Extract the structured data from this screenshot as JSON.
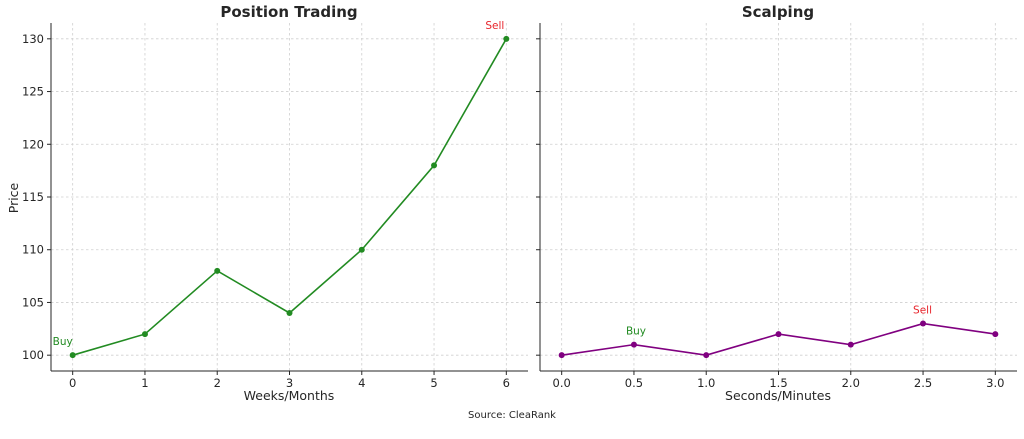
{
  "source_note": "Source: CleaRank",
  "chart_data": [
    {
      "type": "line",
      "title": "Position Trading",
      "xlabel": "Weeks/Months",
      "ylabel": "Price",
      "x": [
        0,
        1,
        2,
        3,
        4,
        5,
        6
      ],
      "series": [
        {
          "values": [
            100,
            102,
            108,
            104,
            110,
            118,
            130
          ],
          "color": "#228b22"
        }
      ],
      "xlim": [
        -0.3,
        6.3
      ],
      "ylim": [
        98.5,
        131.5
      ],
      "xticks": [
        0,
        1,
        2,
        3,
        4,
        5,
        6
      ],
      "xtick_labels": [
        "0",
        "1",
        "2",
        "3",
        "4",
        "5",
        "6"
      ],
      "yticks": [
        100,
        105,
        110,
        115,
        120,
        125,
        130
      ],
      "ytick_labels": [
        "100",
        "105",
        "110",
        "115",
        "120",
        "125",
        "130"
      ],
      "grid": true,
      "annotations": [
        {
          "text": "Buy",
          "x": 0,
          "y": 100,
          "color": "#228b22"
        },
        {
          "text": "Sell",
          "x": 6,
          "y": 130,
          "color": "#e8232a"
        }
      ]
    },
    {
      "type": "line",
      "title": "Scalping",
      "xlabel": "Seconds/Minutes",
      "ylabel": "",
      "x": [
        0.0,
        0.5,
        1.0,
        1.5,
        2.0,
        2.5,
        3.0
      ],
      "series": [
        {
          "values": [
            100,
            101,
            100,
            102,
            101,
            103,
            102
          ],
          "color": "#800080"
        }
      ],
      "xlim": [
        -0.15,
        3.15
      ],
      "ylim": [
        98.5,
        131.5
      ],
      "xticks": [
        0.0,
        0.5,
        1.0,
        1.5,
        2.0,
        2.5,
        3.0
      ],
      "xtick_labels": [
        "0.0",
        "0.5",
        "1.0",
        "1.5",
        "2.0",
        "2.5",
        "3.0"
      ],
      "yticks": [
        100,
        105,
        110,
        115,
        120,
        125,
        130
      ],
      "ytick_labels": [],
      "grid": true,
      "annotations": [
        {
          "text": "Buy",
          "x": 0.5,
          "y": 101,
          "color": "#228b22"
        },
        {
          "text": "Sell",
          "x": 2.5,
          "y": 103,
          "color": "#e8232a"
        }
      ]
    }
  ]
}
